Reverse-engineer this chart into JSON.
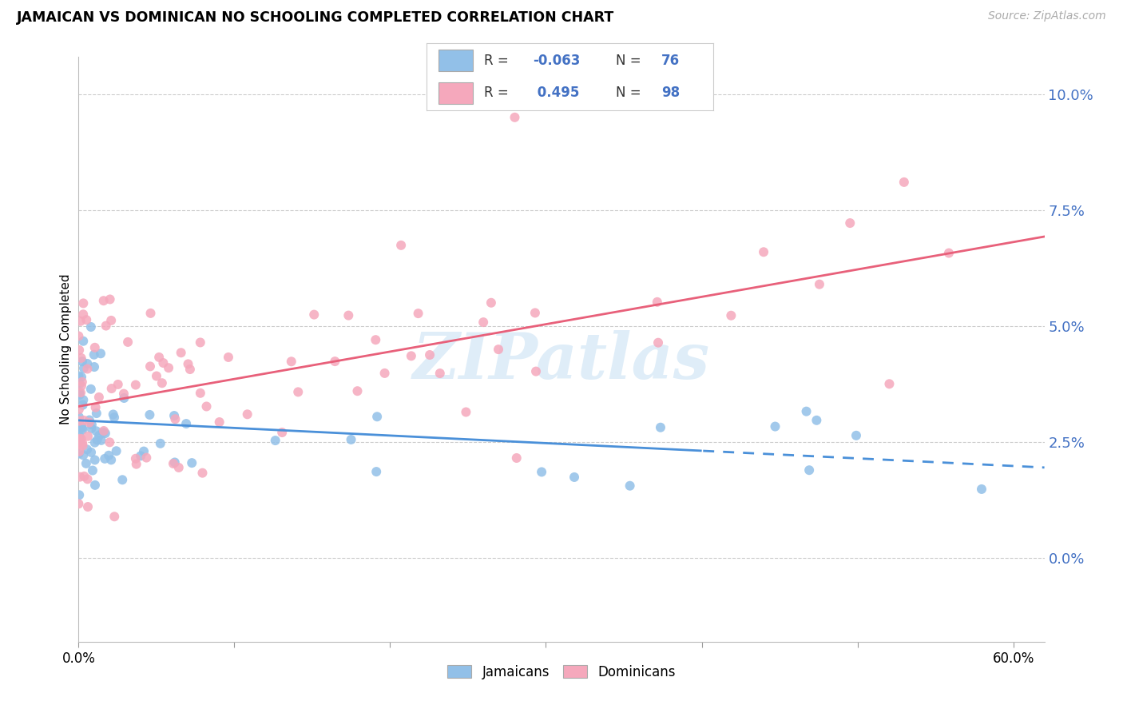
{
  "title": "JAMAICAN VS DOMINICAN NO SCHOOLING COMPLETED CORRELATION CHART",
  "source": "Source: ZipAtlas.com",
  "ylabel": "No Schooling Completed",
  "blue_color": "#92C0E8",
  "pink_color": "#F5A8BC",
  "blue_line_color": "#4A90D9",
  "pink_line_color": "#E8607A",
  "legend_r_blue": "-0.063",
  "legend_n_blue": "76",
  "legend_r_pink": "0.495",
  "legend_n_pink": "98",
  "watermark_text": "ZIPatlas",
  "xlim": [
    0.0,
    0.62
  ],
  "ylim": [
    -0.018,
    0.108
  ],
  "x_ticks": [
    0.0,
    0.1,
    0.2,
    0.3,
    0.4,
    0.5,
    0.6
  ],
  "y_ticks": [
    0.0,
    0.025,
    0.05,
    0.075,
    0.1
  ],
  "blue_line_solid_end": 0.4,
  "seed": 99
}
